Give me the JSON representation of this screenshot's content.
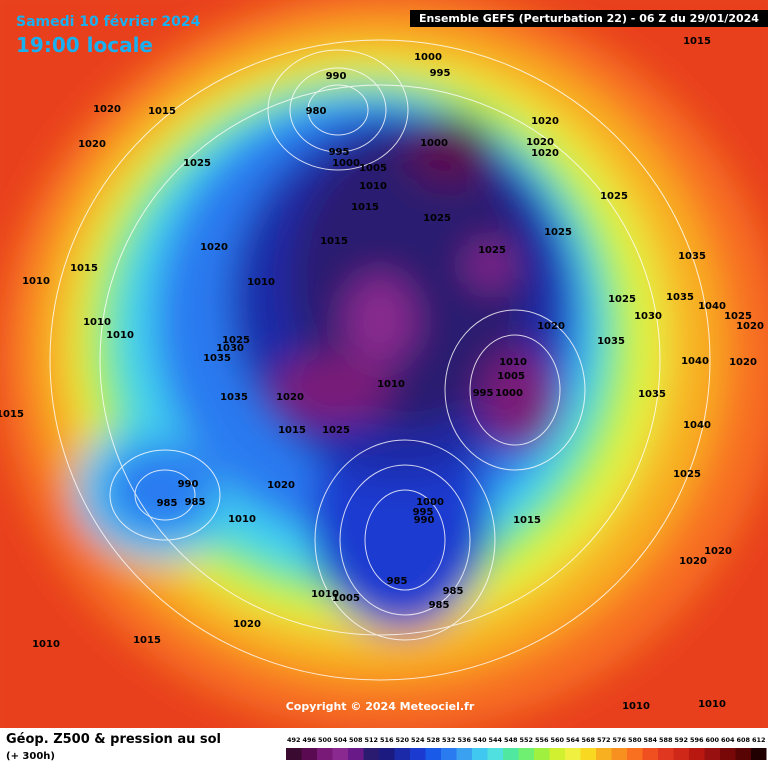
{
  "header": {
    "date": "Samedi 10 février 2024",
    "time": "19:00 locale",
    "run": "Ensemble GEFS  (Perturbation 22)  -  06 Z du 29/01/2024"
  },
  "copyright": "Copyright © 2024 Meteociel.fr",
  "footer": {
    "title": "Géop. Z500 & pression au sol",
    "lead": "(+ 300h)"
  },
  "colorbar": {
    "ticks": [
      492,
      496,
      500,
      504,
      508,
      512,
      516,
      520,
      524,
      528,
      532,
      536,
      540,
      544,
      548,
      552,
      556,
      560,
      564,
      568,
      572,
      576,
      580,
      584,
      588,
      592,
      596,
      600,
      604,
      608,
      612
    ],
    "colors": [
      "#3a0a30",
      "#5a0a50",
      "#7a1a78",
      "#8a2a90",
      "#6a1a88",
      "#2a1a70",
      "#1a1a80",
      "#1a2aa8",
      "#1a3ad0",
      "#1a5ae8",
      "#2a7af0",
      "#3aa0f0",
      "#40c8f0",
      "#50e0e0",
      "#50e8a0",
      "#70f070",
      "#a0f040",
      "#d0f030",
      "#f0f040",
      "#f8d820",
      "#f8b020",
      "#f89020",
      "#f87020",
      "#f05020",
      "#e03820",
      "#d02818",
      "#b81810",
      "#981010",
      "#780808",
      "#580404",
      "#200000"
    ]
  },
  "isobars": [
    "990",
    "1000",
    "995",
    "1015",
    "1020",
    "1015",
    "1020",
    "980",
    "995",
    "1000",
    "1000",
    "1020",
    "1020",
    "1020",
    "1025",
    "1005",
    "1010",
    "1015",
    "1025",
    "1025",
    "1025",
    "1020",
    "1015",
    "1025",
    "1035",
    "1010",
    "1015",
    "1010",
    "1025",
    "1035",
    "1030",
    "1040",
    "1025",
    "1020",
    "1010",
    "1035",
    "1020",
    "1025",
    "1030",
    "1035",
    "1010",
    "1005",
    "1040",
    "1020",
    "1010",
    "995",
    "1000",
    "1035",
    "1020",
    "1035",
    "1040",
    "1015",
    "1015",
    "1025",
    "1025",
    "990",
    "985",
    "985",
    "1020",
    "1000",
    "995",
    "990",
    "1015",
    "1010",
    "985",
    "1010",
    "1005",
    "985",
    "985",
    "1020",
    "1020",
    "1015",
    "1020",
    "1010",
    "1010",
    "1010",
    "1010"
  ]
}
